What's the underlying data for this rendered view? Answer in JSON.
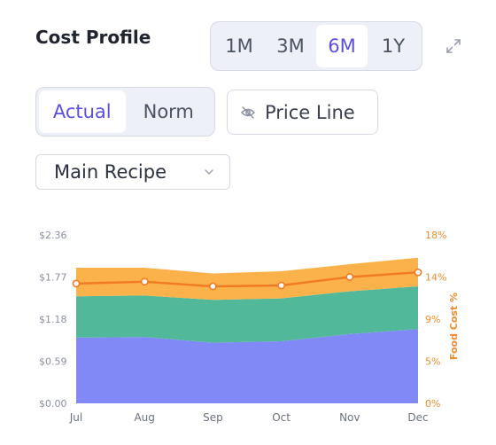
{
  "header": {
    "title": "Cost Profile",
    "range_tabs": [
      {
        "label": "1M",
        "active": false
      },
      {
        "label": "3M",
        "active": false
      },
      {
        "label": "6M",
        "active": true
      },
      {
        "label": "1Y",
        "active": false
      }
    ],
    "expand_icon": "expand-arrows-icon"
  },
  "controls": {
    "mode_tabs": [
      {
        "label": "Actual",
        "active": true
      },
      {
        "label": "Norm",
        "active": false
      }
    ],
    "price_line": {
      "label": "Price Line",
      "icon": "eye-off-icon"
    },
    "recipe_select": {
      "value": "Main Recipe",
      "icon": "chevron-down-icon"
    }
  },
  "colors": {
    "layer_bottom": "#8089f5",
    "layer_middle": "#52b89a",
    "layer_top": "#fbb24a",
    "food_cost_line": "#f27a22",
    "accent": "#5b4ee6"
  },
  "chart_data": {
    "type": "area",
    "stacked": true,
    "x": [
      "Jul",
      "Aug",
      "Sep",
      "Oct",
      "Nov",
      "Dec"
    ],
    "y_left": {
      "ticks": [
        "$0.00",
        "$0.59",
        "$1.18",
        "$1.77",
        "$2.36"
      ],
      "range": [
        0,
        2.36
      ]
    },
    "y_right": {
      "label": "Food Cost %",
      "ticks": [
        "0%",
        "5%",
        "9%",
        "14%",
        "18%"
      ],
      "range": [
        0,
        18
      ]
    },
    "series": [
      {
        "values": [
          0.92,
          0.93,
          0.85,
          0.87,
          0.97,
          1.04
        ]
      },
      {
        "values": [
          0.58,
          0.58,
          0.6,
          0.6,
          0.6,
          0.6
        ]
      },
      {
        "values": [
          0.4,
          0.39,
          0.37,
          0.38,
          0.38,
          0.4
        ]
      }
    ],
    "line": {
      "values": [
        12.8,
        13.0,
        12.5,
        12.6,
        13.5,
        14.0
      ],
      "axis": "right"
    }
  }
}
